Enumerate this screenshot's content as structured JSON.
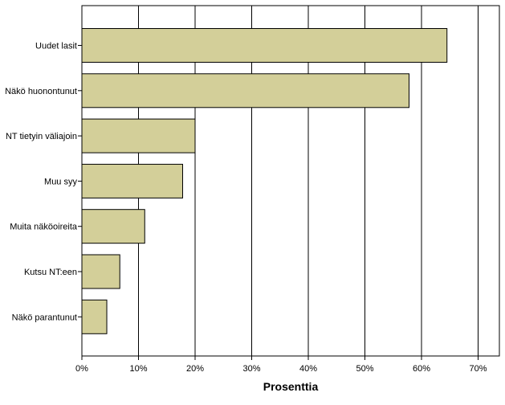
{
  "chart_data": {
    "type": "bar",
    "orientation": "horizontal",
    "categories": [
      "Uudet lasit",
      "Näkö huonontunut",
      "NT tietyin väliajoin",
      "Muu syy",
      "Muita näköoireita",
      "Kutsu NT:een",
      "Näkö parantunut"
    ],
    "values": [
      64.5,
      57.8,
      20.0,
      17.8,
      11.1,
      6.7,
      4.4
    ],
    "xlabel": "Prosenttia",
    "ylabel": "",
    "xlim": [
      0,
      74
    ],
    "xticks": [
      0,
      10,
      20,
      30,
      40,
      50,
      60,
      70
    ],
    "xtick_labels": [
      "0%",
      "10%",
      "20%",
      "30%",
      "40%",
      "50%",
      "60%",
      "70%"
    ],
    "grid": "vertical",
    "bar_color": "#d3cf99",
    "bar_edge_color": "#000000"
  }
}
